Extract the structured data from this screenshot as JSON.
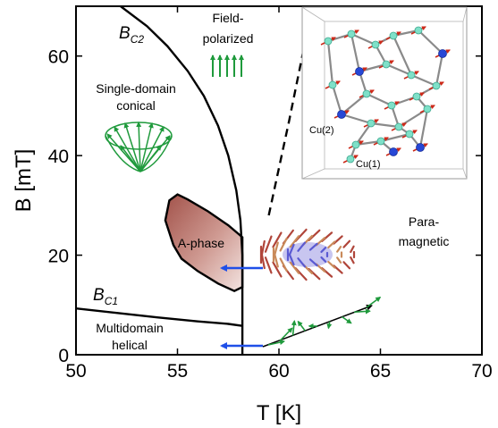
{
  "chart_data": {
    "type": "phase-diagram",
    "xlabel": "T [K]",
    "ylabel": "B [mT]",
    "xlim": [
      50,
      70
    ],
    "ylim": [
      0,
      70
    ],
    "xticks": [
      50,
      55,
      60,
      65,
      70
    ],
    "yticks": [
      0,
      20,
      40,
      60
    ],
    "boundaries": [
      {
        "name": "B_C2",
        "style": "solid",
        "points": [
          [
            52.2,
            70
          ],
          [
            53.5,
            66
          ],
          [
            54.5,
            62
          ],
          [
            55.5,
            57
          ],
          [
            56.3,
            52
          ],
          [
            57.0,
            46
          ],
          [
            57.5,
            40
          ],
          [
            57.9,
            33
          ],
          [
            58.1,
            27
          ],
          [
            58.2,
            20
          ],
          [
            58.2,
            10
          ],
          [
            58.2,
            0
          ]
        ]
      },
      {
        "name": "B_C1",
        "style": "solid",
        "points": [
          [
            50,
            9.3
          ],
          [
            52,
            8.4
          ],
          [
            54,
            7.5
          ],
          [
            56,
            6.7
          ],
          [
            57.5,
            6.2
          ],
          [
            58.2,
            5.8
          ]
        ]
      },
      {
        "name": "A-phase",
        "style": "solid",
        "closed": true,
        "points": [
          [
            55.0,
            32.2
          ],
          [
            55.5,
            31.2
          ],
          [
            56.5,
            28.8
          ],
          [
            57.5,
            26.0
          ],
          [
            58.2,
            23.6
          ],
          [
            58.2,
            13.6
          ],
          [
            57.8,
            12.8
          ],
          [
            57.0,
            14.3
          ],
          [
            56.0,
            16.8
          ],
          [
            55.2,
            19.3
          ],
          [
            54.8,
            22.0
          ],
          [
            54.4,
            27.0
          ],
          [
            54.6,
            31.0
          ]
        ]
      },
      {
        "name": "paramagnetic boundary",
        "style": "dashed",
        "points": [
          [
            59.5,
            28
          ],
          [
            60.5,
            47
          ],
          [
            61.5,
            67
          ],
          [
            61.7,
            70
          ]
        ]
      }
    ]
  },
  "labels": {
    "bc2_main": "B",
    "bc2_sub": "C2",
    "bc1_main": "B",
    "bc1_sub": "C1",
    "field_polarized_1": "Field-",
    "field_polarized_2": "polarized",
    "single_domain_1": "Single-domain",
    "single_domain_2": "conical",
    "a_phase": "A-phase",
    "para_1": "Para-",
    "para_2": "magnetic",
    "multidomain_1": "Multidomain",
    "multidomain_2": "helical",
    "cu2": "Cu(2)",
    "cu1": "Cu(1)"
  },
  "colors": {
    "line": "#000000",
    "a_phase_fill_dark": "#a2524a",
    "a_phase_fill_light": "#f3e4e1",
    "spin_green": "#1f9a3c",
    "arrow_blue": "#1f4fe8",
    "atom_cyan": "#7fe0c8",
    "atom_blue": "#2747d6",
    "spin_red": "#cc2a1a",
    "bond_gray": "#8a8a8a"
  }
}
